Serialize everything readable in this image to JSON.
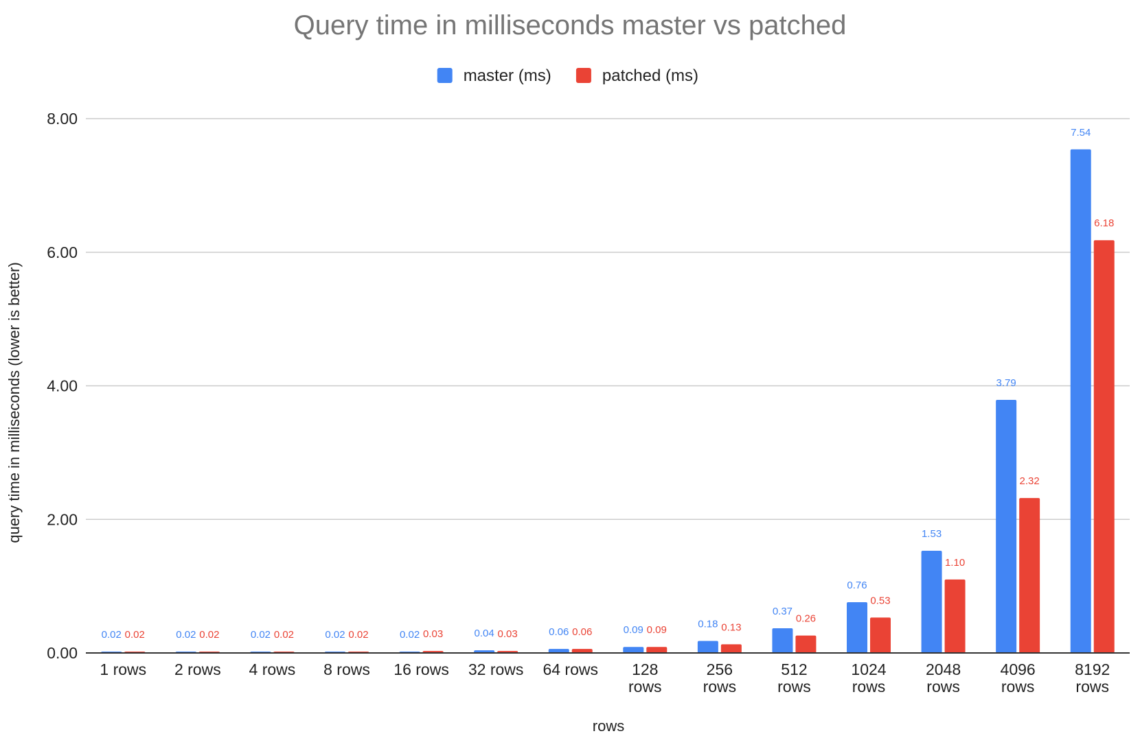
{
  "chart_data": {
    "type": "bar",
    "title": "Query time in milliseconds master vs patched",
    "xlabel": "rows",
    "ylabel": "query time in milliseconds (lower is better)",
    "categories": [
      "1 rows",
      "2 rows",
      "4 rows",
      "8 rows",
      "16 rows",
      "32 rows",
      "64 rows",
      "128 rows",
      "256 rows",
      "512 rows",
      "1024 rows",
      "2048 rows",
      "4096 rows",
      "8192 rows"
    ],
    "series": [
      {
        "name": "master (ms)",
        "color": "#4285F4",
        "values": [
          0.02,
          0.02,
          0.02,
          0.02,
          0.02,
          0.04,
          0.06,
          0.09,
          0.18,
          0.37,
          0.76,
          1.53,
          3.79,
          7.54
        ],
        "labels": [
          "0.02",
          "0.02",
          "0.02",
          "0.02",
          "0.02",
          "0.04",
          "0.06",
          "0.09",
          "0.18",
          "0.37",
          "0.76",
          "1.53",
          "3.79",
          "7.54"
        ]
      },
      {
        "name": "patched (ms)",
        "color": "#EA4335",
        "values": [
          0.02,
          0.02,
          0.02,
          0.02,
          0.03,
          0.03,
          0.06,
          0.09,
          0.13,
          0.26,
          0.53,
          1.1,
          2.32,
          6.18
        ],
        "labels": [
          "0.02",
          "0.02",
          "0.02",
          "0.02",
          "0.03",
          "0.03",
          "0.06",
          "0.09",
          "0.13",
          "0.26",
          "0.53",
          "1.10",
          "2.32",
          "6.18"
        ]
      }
    ],
    "ylim": [
      0,
      8
    ],
    "yticks": [
      "0.00",
      "2.00",
      "4.00",
      "6.00",
      "8.00"
    ],
    "ytick_values": [
      0,
      2,
      4,
      6,
      8
    ],
    "grid": true,
    "legend_position": "top-center"
  }
}
